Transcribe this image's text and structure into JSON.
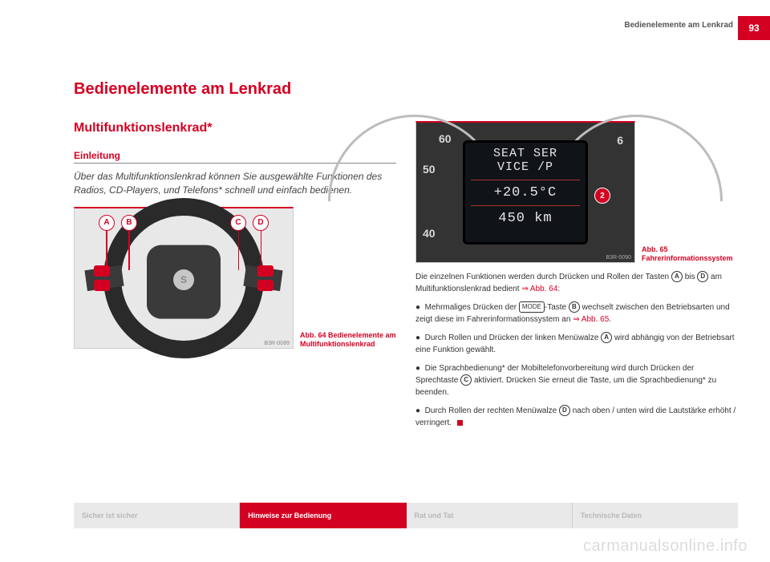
{
  "page": {
    "header_title": "Bedienelemente am Lenkrad",
    "number": "93"
  },
  "headings": {
    "h1": "Bedienelemente am Lenkrad",
    "h2": "Multifunktionslenkrad*",
    "h3": "Einleitung"
  },
  "intro": "Über das Multifunktionslenkrad können Sie ausgewählte Funktionen des Radios, CD-Players, und Telefons* schnell und einfach bedienen.",
  "fig64": {
    "caption": "Abb. 64  Bedienelemente am Multifunktionslenkrad",
    "code": "B3R-0089",
    "callouts": {
      "A": "A",
      "B": "B",
      "C": "C",
      "D": "D"
    }
  },
  "fig65": {
    "caption": "Abb. 65  Fahrerinformationssystem",
    "code": "B3R-0090",
    "badge": "2",
    "gauge_left_ticks": {
      "g40": "40",
      "g50": "50",
      "g60": "60"
    },
    "gauge_right_tick": "6",
    "lcd": {
      "line1": "SEAT SER",
      "line2": "VICE  /P",
      "temp": "+20.5°C",
      "dist": "450 km"
    }
  },
  "body": {
    "p1a": "Die einzelnen Funktionen werden durch Drücken und Rollen der Tasten ",
    "p1b": " bis ",
    "p1c": " am Multifunktionslenkrad bedient ",
    "p1ref": "⇒ Abb. 64",
    "p1end": ":",
    "b1a": "Mehrmaliges Drücken der ",
    "mode": "MODE",
    "b1b": "-Taste ",
    "b1c": " wechselt zwischen den Betriebsarten und zeigt diese im Fahrerinformationssystem an ",
    "b1ref": "⇒ Abb. 65",
    "b1end": ".",
    "b2a": "Durch Rollen und Drücken der linken Menüwalze ",
    "b2b": " wird abhängig von der Betriebsart eine Funktion gewählt.",
    "b3a": "Die Sprachbedienung* der Mobiltelefonvorbereitung wird durch Drücken der Sprechtaste ",
    "b3b": " aktiviert. Drücken Sie erneut die Taste, um die Sprachbedienung* zu beenden.",
    "b4a": "Durch Rollen der rechten Menüwalze ",
    "b4b": " nach oben / unten wird die Lautstärke erhöht / verringert."
  },
  "circles": {
    "A": "A",
    "B": "B",
    "C": "C",
    "D": "D"
  },
  "footer": {
    "t1": "Sicher ist sicher",
    "t2": "Hinweise zur Bedienung",
    "t3": "Rat und Tat",
    "t4": "Technische Daten"
  },
  "watermark": "carmanualsonline.info"
}
